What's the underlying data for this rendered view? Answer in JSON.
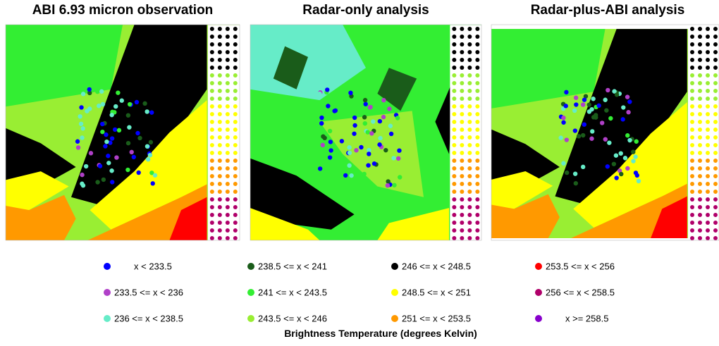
{
  "panels": [
    {
      "title": "ABI 6.93 micron observation"
    },
    {
      "title": "Radar-only analysis"
    },
    {
      "title": "Radar-plus-ABI analysis"
    }
  ],
  "legend": {
    "title": "Brightness Temperature (degrees Kelvin)",
    "items": [
      {
        "label": "x < 233.5",
        "color": "#0000ff"
      },
      {
        "label": "233.5 <= x < 236",
        "color": "#b040c8"
      },
      {
        "label": "236 <= x < 238.5",
        "color": "#66ecc8"
      },
      {
        "label": "238.5 <= x < 241",
        "color": "#1a5c1a"
      },
      {
        "label": "241 <= x < 243.5",
        "color": "#33ee33"
      },
      {
        "label": "243.5 <= x < 246",
        "color": "#99ee33"
      },
      {
        "label": "246 <= x < 248.5",
        "color": "#000000"
      },
      {
        "label": "248.5 <= x < 251",
        "color": "#ffff00"
      },
      {
        "label": "251 <= x < 253.5",
        "color": "#ff9900"
      },
      {
        "label": "253.5 <= x < 256",
        "color": "#ff0000"
      },
      {
        "label": "256 <= x < 258.5",
        "color": "#b0006a"
      },
      {
        "label": "x >= 258.5",
        "color": "#8800cc"
      }
    ]
  }
}
